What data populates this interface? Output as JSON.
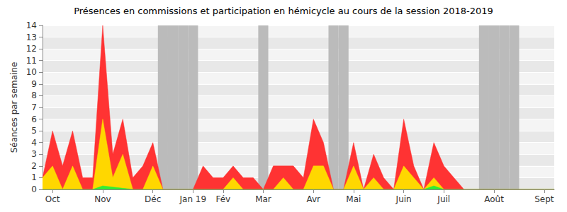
{
  "chart_data": {
    "type": "area",
    "title": "Présences en commissions et participation en hémicycle au cours de la session 2018-2019",
    "y_label": "Séances par semaine",
    "categories": [
      null,
      "Oct",
      null,
      null,
      null,
      null,
      "Nov",
      null,
      null,
      null,
      null,
      "Déc",
      null,
      null,
      null,
      "Jan 19",
      null,
      null,
      "Fév",
      null,
      null,
      null,
      "Mar",
      null,
      null,
      null,
      null,
      "Avr",
      null,
      null,
      null,
      "Mai",
      null,
      null,
      null,
      null,
      "Juin",
      null,
      null,
      null,
      "Juil",
      null,
      null,
      null,
      null,
      "Août",
      null,
      null,
      null,
      null,
      "Sept",
      null
    ],
    "series": [
      {
        "color": "#ff3333",
        "values": [
          1,
          5,
          2,
          5,
          1,
          1,
          14,
          3,
          6,
          1,
          2,
          4,
          0,
          0,
          0,
          0,
          2,
          1,
          1,
          2,
          1,
          1,
          0,
          2,
          2,
          2,
          1,
          6,
          4,
          0,
          0,
          4,
          0,
          3,
          1,
          0,
          6,
          2,
          0,
          4,
          2,
          1,
          0,
          0,
          0,
          0,
          0,
          0,
          0,
          0,
          0,
          0
        ]
      },
      {
        "color": "#ffd700",
        "values": [
          1,
          2,
          0,
          2,
          0,
          0,
          6,
          1,
          3,
          0,
          0,
          2,
          0,
          0,
          0,
          0,
          0,
          0,
          0,
          1,
          0,
          0,
          0,
          0,
          1,
          0,
          0,
          2,
          2,
          0,
          0,
          2,
          0,
          1,
          0,
          0,
          2,
          1,
          0,
          1,
          0,
          0,
          0,
          0,
          0,
          0,
          0,
          0,
          0,
          0,
          0,
          0
        ]
      },
      {
        "color": "#33ee33",
        "values": [
          0,
          0,
          0,
          0,
          0,
          0,
          0.3,
          0.2,
          0.1,
          0,
          0,
          0,
          0,
          0,
          0,
          0,
          0,
          0,
          0,
          0,
          0,
          0,
          0,
          0,
          0,
          0,
          0,
          0,
          0,
          0,
          0,
          0,
          0,
          0,
          0,
          0,
          0,
          0,
          0,
          0.3,
          0,
          0,
          0,
          0,
          0,
          0,
          0,
          0,
          0,
          0,
          0,
          0
        ]
      }
    ],
    "shaded_weeks": [
      12,
      13,
      14,
      15,
      22,
      29,
      30,
      44,
      45,
      46,
      47
    ],
    "stacked": false,
    "ylim": [
      0,
      14
    ],
    "yticks": [
      0,
      1,
      2,
      3,
      4,
      5,
      6,
      7,
      8,
      9,
      10,
      11,
      12,
      13,
      14
    ],
    "grid": true
  }
}
